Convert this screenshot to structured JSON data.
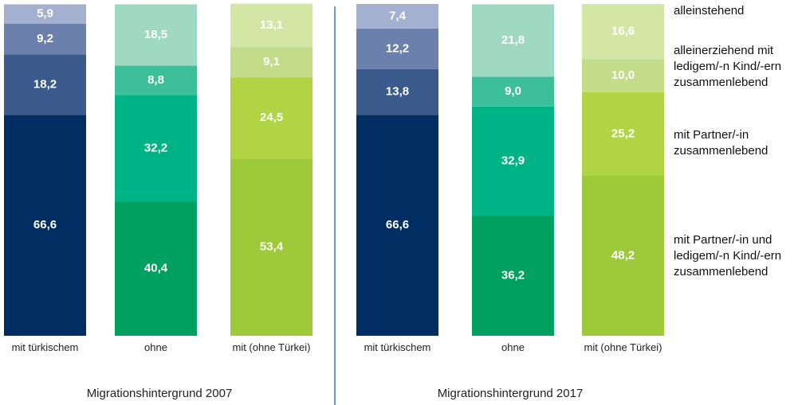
{
  "chart_data": [
    {
      "type": "bar",
      "stacked": true,
      "xlabel": "Migrationshintergrund 2007",
      "categories": [
        "mit türkischem",
        "ohne",
        "mit (ohne Türkei)"
      ],
      "ylim": [
        0,
        100
      ],
      "series": [
        {
          "name": "mit Partner/-in und ledigem/-n Kind/-ern zusammenlebend",
          "color": [
            "#002d62",
            "#00a060",
            "#9dc93a"
          ],
          "values": [
            66.6,
            40.4,
            53.4
          ],
          "value_labels": [
            "66,6",
            "40,4",
            "53,4"
          ]
        },
        {
          "name": "mit Partner/-in zusammenlebend",
          "color": [
            "#3a5a8c",
            "#00b386",
            "#b1d445"
          ],
          "values": [
            18.2,
            32.2,
            24.5
          ],
          "value_labels": [
            "18,2",
            "32,2",
            "24,5"
          ]
        },
        {
          "name": "alleinerziehend mit ledigem/-n Kind/-ern zusammenlebend",
          "color": [
            "#6b80ad",
            "#3dbf9a",
            "#c2dc8a"
          ],
          "values": [
            9.2,
            8.8,
            9.1
          ],
          "value_labels": [
            "9,2",
            "8,8",
            "9,1"
          ]
        },
        {
          "name": "alleinstehend",
          "color": [
            "#a3b0cf",
            "#9fd9c4",
            "#d4e6a5"
          ],
          "values": [
            5.9,
            18.5,
            13.1
          ],
          "value_labels": [
            "5,9",
            "18,5",
            "13,1"
          ]
        }
      ]
    },
    {
      "type": "bar",
      "stacked": true,
      "xlabel": "Migrationshintergrund 2017",
      "categories": [
        "mit türkischem",
        "ohne",
        "mit (ohne Türkei)"
      ],
      "ylim": [
        0,
        100
      ],
      "series": [
        {
          "name": "mit Partner/-in und ledigem/-n Kind/-ern zusammenlebend",
          "color": [
            "#002d62",
            "#00a060",
            "#9dc93a"
          ],
          "values": [
            66.6,
            36.2,
            48.2
          ],
          "value_labels": [
            "66,6",
            "36,2",
            "48,2"
          ]
        },
        {
          "name": "mit Partner/-in zusammenlebend",
          "color": [
            "#3a5a8c",
            "#00b386",
            "#b1d445"
          ],
          "values": [
            13.8,
            32.9,
            25.2
          ],
          "value_labels": [
            "13,8",
            "32,9",
            "25,2"
          ]
        },
        {
          "name": "alleinerziehend mit ledigem/-n Kind/-ern zusammenlebend",
          "color": [
            "#6b80ad",
            "#3dbf9a",
            "#c2dc8a"
          ],
          "values": [
            12.2,
            9.0,
            10.0
          ],
          "value_labels": [
            "12,2",
            "9,0",
            "10,0"
          ]
        },
        {
          "name": "alleinstehend",
          "color": [
            "#a3b0cf",
            "#9fd9c4",
            "#d4e6a5"
          ],
          "values": [
            7.4,
            21.8,
            16.6
          ],
          "value_labels": [
            "7,4",
            "21,8",
            "16,6"
          ]
        }
      ]
    }
  ]
}
